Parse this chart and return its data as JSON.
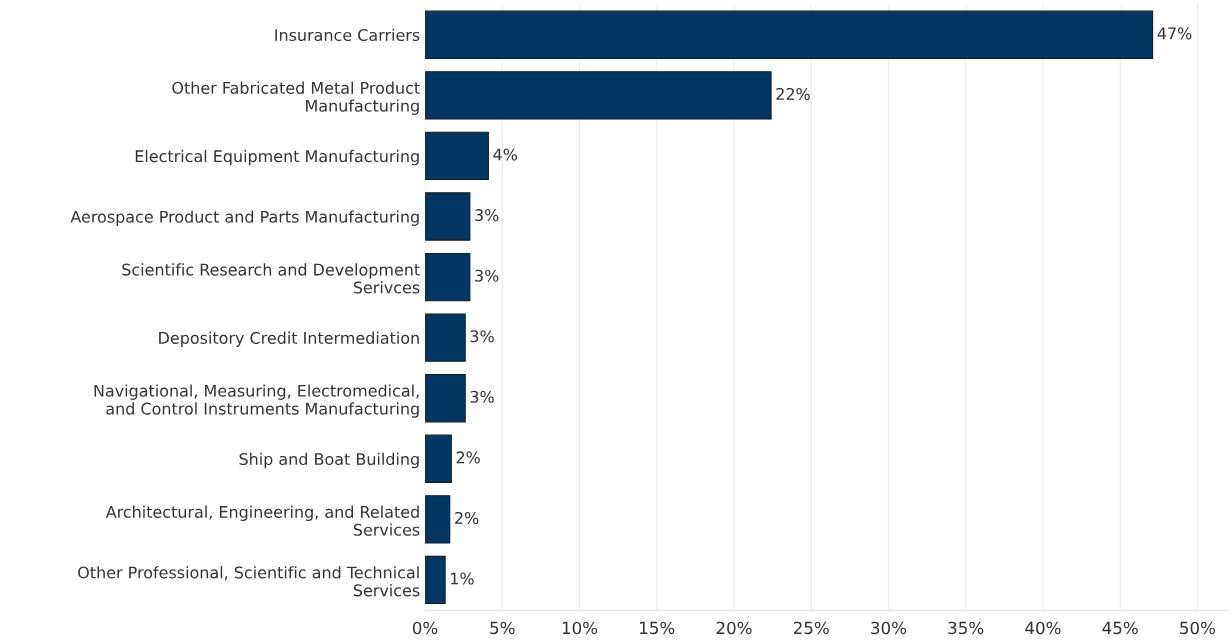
{
  "chart_data": {
    "type": "bar",
    "orientation": "horizontal",
    "categories": [
      "Insurance Carriers",
      "Other Fabricated Metal Product\nManufacturing",
      "Electrical Equipment Manufacturing",
      "Aerospace Product and Parts Manufacturing",
      "Scientific Research and Development\nSerivces",
      "Depository Credit Intermediation",
      "Navigational, Measuring, Electromedical,\nand Control Instruments Manufacturing",
      "Ship and Boat Building",
      "Architectural, Engineering, and Related\nServices",
      "Other Professional, Scientific and Technical\nServices"
    ],
    "values": [
      47.1,
      22.4,
      4.1,
      2.9,
      2.9,
      2.6,
      2.6,
      1.7,
      1.6,
      1.3
    ],
    "value_labels": [
      "47%",
      "22%",
      "4%",
      "3%",
      "3%",
      "3%",
      "3%",
      "2%",
      "2%",
      "1%"
    ],
    "color": "#023764",
    "xlim": [
      0,
      52
    ],
    "xticks": [
      {
        "value": 0,
        "label": "0%"
      },
      {
        "value": 5,
        "label": "5%"
      },
      {
        "value": 10,
        "label": "10%"
      },
      {
        "value": 15,
        "label": "15%"
      },
      {
        "value": 20,
        "label": "20%"
      },
      {
        "value": 25,
        "label": "25%"
      },
      {
        "value": 30,
        "label": "30%"
      },
      {
        "value": 35,
        "label": "35%"
      },
      {
        "value": 40,
        "label": "40%"
      },
      {
        "value": 45,
        "label": "45%"
      },
      {
        "value": 50,
        "label": "50%"
      }
    ],
    "grid": "x"
  }
}
